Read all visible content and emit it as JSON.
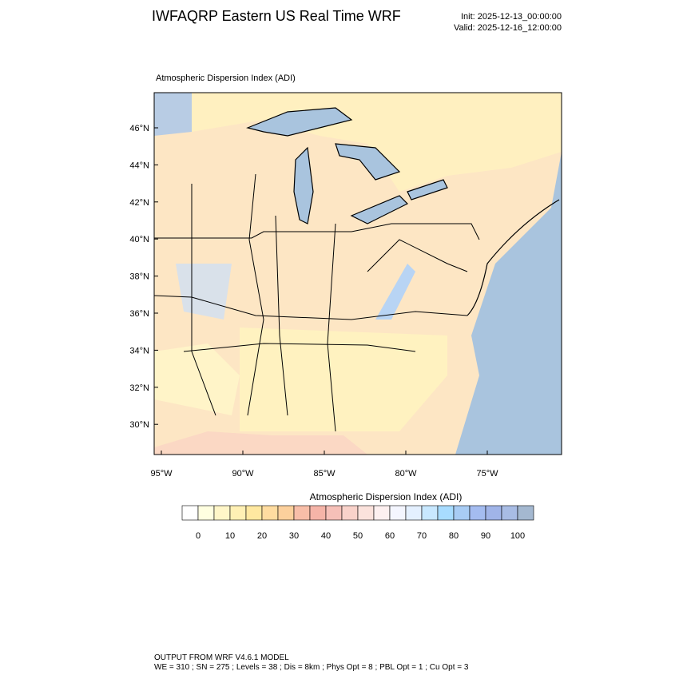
{
  "header": {
    "title": "IWFAQRP Eastern US Real Time WRF",
    "init": "Init: 2025-12-13_00:00:00",
    "valid": "Valid: 2025-12-16_12:00:00"
  },
  "map": {
    "subtitle": "Atmospheric Dispersion Index   (ADI)",
    "lat_labels": [
      "46°N",
      "44°N",
      "42°N",
      "40°N",
      "38°N",
      "36°N",
      "34°N",
      "32°N",
      "30°N"
    ],
    "lon_labels": [
      "95°W",
      "90°W",
      "85°W",
      "80°W",
      "75°W"
    ]
  },
  "colorbar": {
    "title": "Atmospheric Dispersion Index  (ADI)",
    "colors": [
      "#ffffff",
      "#ffffe0",
      "#fff6c8",
      "#fff0b4",
      "#ffe8a0",
      "#ffdca0",
      "#fcd09c",
      "#f8bea8",
      "#f5b4a8",
      "#f6c0b8",
      "#f9d2ca",
      "#fbe2dc",
      "#fdf0f0",
      "#f4f6ff",
      "#e4f0ff",
      "#c8e8ff",
      "#a8dcff",
      "#a8ccf4",
      "#a4bcf0",
      "#a0b4e8",
      "#a8bce4",
      "#a4b8d0"
    ],
    "labels": [
      0,
      10,
      20,
      30,
      40,
      50,
      60,
      70,
      80,
      90,
      100
    ]
  },
  "footer": {
    "line1": "OUTPUT FROM WRF V4.6.1 MODEL",
    "line2": "WE = 310 ; SN = 275 ; Levels = 38 ; Dis = 8km ; Phys Opt = 8 ; PBL Opt = 1 ; Cu Opt = 3"
  }
}
